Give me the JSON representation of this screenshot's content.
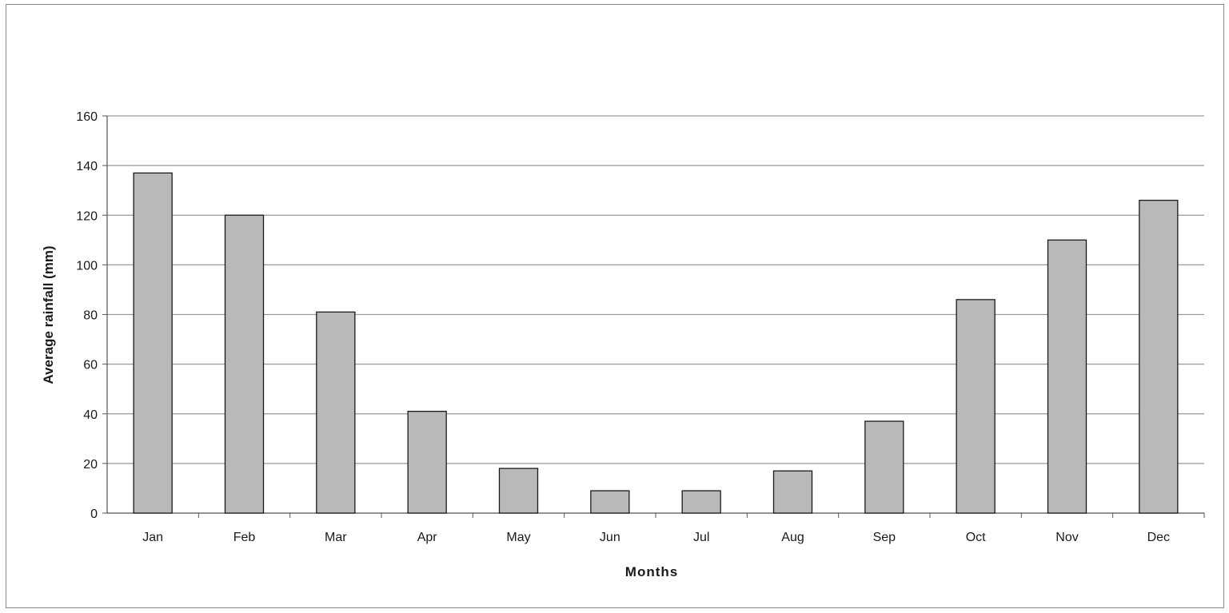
{
  "chart_data": {
    "type": "bar",
    "categories": [
      "Jan",
      "Feb",
      "Mar",
      "Apr",
      "May",
      "Jun",
      "Jul",
      "Aug",
      "Sep",
      "Oct",
      "Nov",
      "Dec"
    ],
    "values": [
      137,
      120,
      81,
      41,
      18,
      9,
      9,
      17,
      37,
      86,
      110,
      126
    ],
    "title": "",
    "xlabel": "Months",
    "ylabel": "Average rainfall (mm)",
    "ylim": [
      0,
      160
    ],
    "yticks": [
      "0",
      "20",
      "40",
      "60",
      "80",
      "100",
      "120",
      "140",
      "160"
    ],
    "grid": true,
    "legend": "none"
  },
  "colors": {
    "bar_fill": "#b9b9b9",
    "bar_stroke": "#1a1a1a",
    "grid": "#9a9a9a",
    "axis": "#555555"
  }
}
